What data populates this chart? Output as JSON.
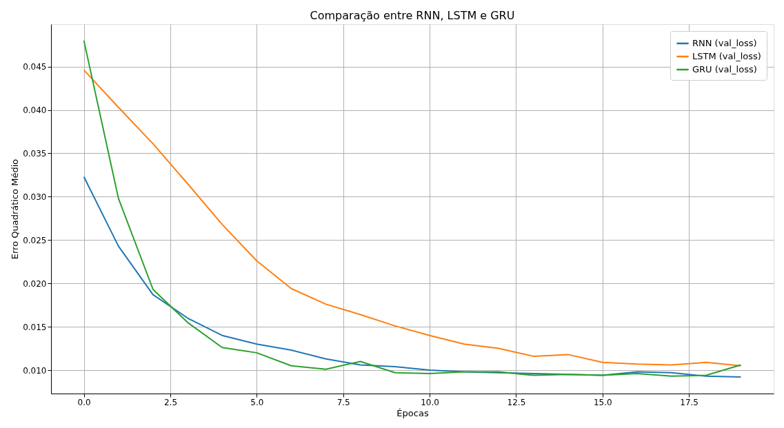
{
  "chart_data": {
    "type": "line",
    "title": "Comparação entre RNN, LSTM e GRU",
    "xlabel": "Épocas",
    "ylabel": "Erro Quadrático Médio",
    "x": [
      0,
      1,
      2,
      3,
      4,
      5,
      6,
      7,
      8,
      9,
      10,
      11,
      12,
      13,
      14,
      15,
      16,
      17,
      18,
      19
    ],
    "series": [
      {
        "name": "RNN (val_loss)",
        "color": "#1f77b4",
        "values": [
          0.0323,
          0.0243,
          0.0187,
          0.016,
          0.014,
          0.013,
          0.0123,
          0.0113,
          0.0106,
          0.0104,
          0.01,
          0.0098,
          0.0097,
          0.0096,
          0.0095,
          0.0094,
          0.0098,
          0.0097,
          0.0093,
          0.0092
        ]
      },
      {
        "name": "LSTM (val_loss)",
        "color": "#ff7f0e",
        "values": [
          0.0446,
          0.0403,
          0.0361,
          0.0315,
          0.0268,
          0.0226,
          0.0194,
          0.0176,
          0.0164,
          0.0151,
          0.014,
          0.013,
          0.0125,
          0.0116,
          0.0118,
          0.0109,
          0.0107,
          0.0106,
          0.0109,
          0.0105
        ]
      },
      {
        "name": "GRU (val_loss)",
        "color": "#2ca02c",
        "values": [
          0.048,
          0.0298,
          0.0193,
          0.0155,
          0.0126,
          0.012,
          0.0105,
          0.0101,
          0.011,
          0.0097,
          0.0096,
          0.0098,
          0.0098,
          0.0094,
          0.0095,
          0.0094,
          0.0096,
          0.0093,
          0.0094,
          0.0106
        ]
      }
    ],
    "xlim": [
      -0.95,
      19.95
    ],
    "xticks": [
      {
        "value": 0,
        "label": "0.0"
      },
      {
        "value": 2.5,
        "label": "2.5"
      },
      {
        "value": 5,
        "label": "5.0"
      },
      {
        "value": 7.5,
        "label": "7.5"
      },
      {
        "value": 10,
        "label": "10.0"
      },
      {
        "value": 12.5,
        "label": "12.5"
      },
      {
        "value": 15,
        "label": "15.0"
      },
      {
        "value": 17.5,
        "label": "17.5"
      }
    ],
    "ylim": [
      0.0073,
      0.0499
    ],
    "yticks": [
      {
        "value": 0.01,
        "label": "0.010"
      },
      {
        "value": 0.015,
        "label": "0.015"
      },
      {
        "value": 0.02,
        "label": "0.020"
      },
      {
        "value": 0.025,
        "label": "0.025"
      },
      {
        "value": 0.03,
        "label": "0.030"
      },
      {
        "value": 0.035,
        "label": "0.035"
      },
      {
        "value": 0.04,
        "label": "0.040"
      },
      {
        "value": 0.045,
        "label": "0.045"
      }
    ],
    "grid": true,
    "legend": "top right",
    "marker": "none",
    "line_style": "solid"
  }
}
